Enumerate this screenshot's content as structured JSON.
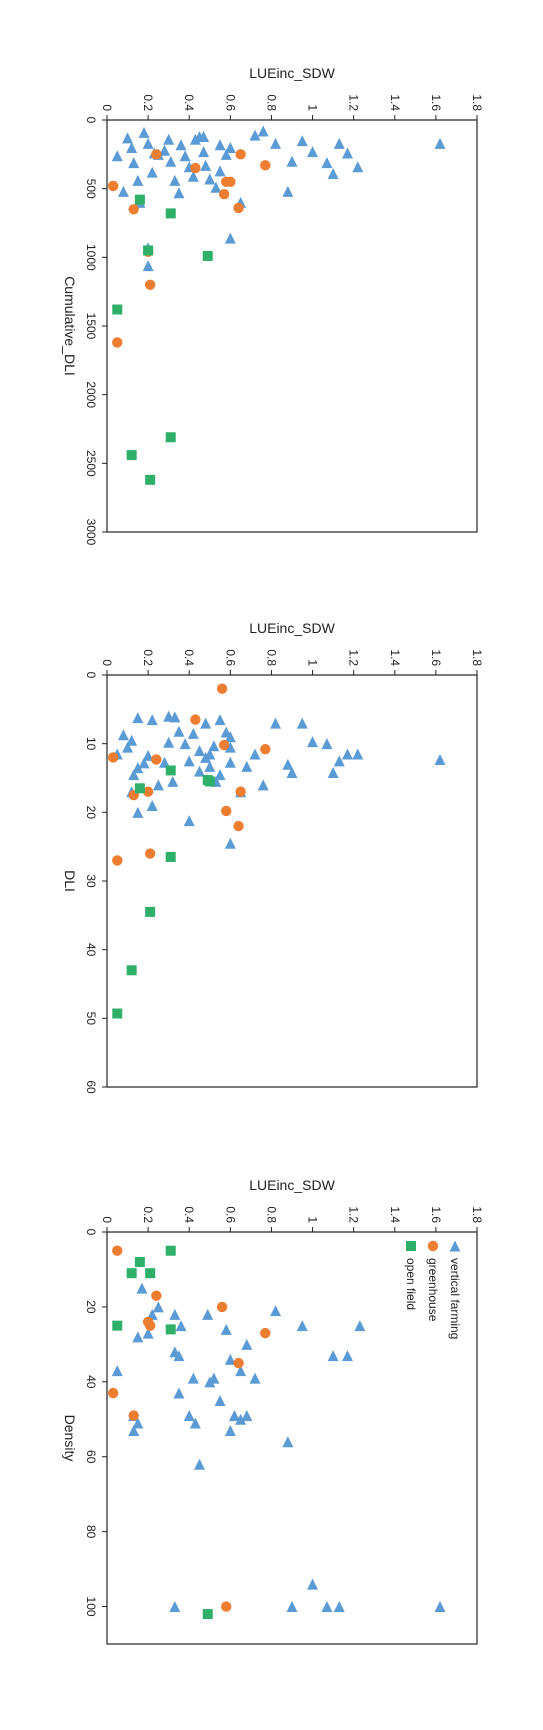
{
  "colors": {
    "vertical_farming": "#5b9bd5",
    "greenhouse": "#ed7d31",
    "open_field": "#2eb069",
    "axis": "#222222"
  },
  "chart_data": [
    {
      "type": "scatter",
      "xlabel": "Density",
      "ylabel": "LUEinc_SDW",
      "xlim": [
        0,
        110
      ],
      "ylim": [
        0,
        1.8
      ],
      "x_ticks": [
        "0",
        "20",
        "40",
        "60",
        "80",
        "100"
      ],
      "y_ticks": [
        "0",
        "0.2",
        "0.4",
        "0.6",
        "0.8",
        "1",
        "1.2",
        "1.4",
        "1.6",
        "1.8"
      ],
      "grid": false,
      "legend": "top-left",
      "series": [
        {
          "name": "vertical farming",
          "marker": "triangle",
          "color": "#5b9bd5",
          "points": [
            [
              100,
              1.62
            ],
            [
              100,
              1.13
            ],
            [
              100,
              1.07
            ],
            [
              100,
              0.9
            ],
            [
              100,
              0.33
            ],
            [
              94,
              1.0
            ],
            [
              56,
              0.88
            ],
            [
              62,
              0.45
            ],
            [
              53,
              0.6
            ],
            [
              53,
              0.13
            ],
            [
              51,
              0.43
            ],
            [
              51,
              0.15
            ],
            [
              50,
              0.65
            ],
            [
              49,
              0.62
            ],
            [
              49,
              0.68
            ],
            [
              49,
              0.4
            ],
            [
              49,
              0.13
            ],
            [
              45,
              0.55
            ],
            [
              43,
              0.35
            ],
            [
              40,
              0.5
            ],
            [
              39,
              0.52
            ],
            [
              39,
              0.72
            ],
            [
              39,
              0.42
            ],
            [
              37,
              0.65
            ],
            [
              37,
              0.05
            ],
            [
              34,
              0.6
            ],
            [
              33,
              1.17
            ],
            [
              33,
              1.1
            ],
            [
              33,
              0.35
            ],
            [
              32,
              0.33
            ],
            [
              30,
              0.68
            ],
            [
              28,
              0.15
            ],
            [
              27,
              0.2
            ],
            [
              26,
              0.58
            ],
            [
              25,
              1.23
            ],
            [
              25,
              0.95
            ],
            [
              25,
              0.36
            ],
            [
              22,
              0.49
            ],
            [
              22,
              0.33
            ],
            [
              22,
              0.22
            ],
            [
              21,
              0.82
            ],
            [
              20,
              0.25
            ],
            [
              15,
              0.17
            ]
          ]
        },
        {
          "name": "greenhouse",
          "marker": "circle",
          "color": "#ed7d31",
          "points": [
            [
              100,
              0.58
            ],
            [
              49,
              0.13
            ],
            [
              43,
              0.03
            ],
            [
              35,
              0.64
            ],
            [
              27,
              0.77
            ],
            [
              25,
              0.21
            ],
            [
              24,
              0.2
            ],
            [
              20,
              0.56
            ],
            [
              17,
              0.24
            ],
            [
              5,
              0.05
            ]
          ]
        },
        {
          "name": "open field",
          "marker": "square",
          "color": "#2eb069",
          "points": [
            [
              102,
              0.49
            ],
            [
              26,
              0.31
            ],
            [
              25,
              0.05
            ],
            [
              11,
              0.21
            ],
            [
              11,
              0.12
            ],
            [
              8,
              0.16
            ],
            [
              5,
              0.31
            ]
          ]
        }
      ]
    },
    {
      "type": "scatter",
      "xlabel": "DLI",
      "ylabel": "LUEinc_SDW",
      "xlim": [
        0,
        60
      ],
      "ylim": [
        0,
        1.8
      ],
      "x_ticks": [
        "0",
        "10",
        "20",
        "30",
        "40",
        "50",
        "60"
      ],
      "y_ticks": [
        "0",
        "0.2",
        "0.4",
        "0.6",
        "0.8",
        "1",
        "1.2",
        "1.4",
        "1.6",
        "1.8"
      ],
      "grid": false,
      "legend": "none",
      "series": [
        {
          "name": "vertical farming",
          "marker": "triangle",
          "color": "#5b9bd5",
          "points": [
            [
              12.3,
              1.62
            ],
            [
              11.5,
              1.22
            ],
            [
              11.5,
              1.17
            ],
            [
              12.5,
              1.13
            ],
            [
              10,
              1.07
            ],
            [
              14.2,
              1.1
            ],
            [
              9.7,
              1.0
            ],
            [
              14.2,
              0.9
            ],
            [
              13,
              0.88
            ],
            [
              7,
              0.95
            ],
            [
              7,
              0.82
            ],
            [
              16,
              0.76
            ],
            [
              11.5,
              0.72
            ],
            [
              13.3,
              0.68
            ],
            [
              17,
              0.65
            ],
            [
              24.5,
              0.6
            ],
            [
              12.7,
              0.6
            ],
            [
              10.5,
              0.6
            ],
            [
              8.3,
              0.58
            ],
            [
              9,
              0.6
            ],
            [
              14.5,
              0.55
            ],
            [
              10.3,
              0.52
            ],
            [
              11.5,
              0.5
            ],
            [
              13.3,
              0.5
            ],
            [
              15.5,
              0.53
            ],
            [
              14,
              0.45
            ],
            [
              11,
              0.45
            ],
            [
              12.5,
              0.4
            ],
            [
              10,
              0.38
            ],
            [
              8.5,
              0.42
            ],
            [
              6.5,
              0.55
            ],
            [
              6.1,
              0.33
            ],
            [
              21.2,
              0.4
            ],
            [
              15.5,
              0.32
            ],
            [
              12.7,
              0.28
            ],
            [
              9.8,
              0.3
            ],
            [
              8.2,
              0.35
            ],
            [
              6,
              0.3
            ],
            [
              19,
              0.22
            ],
            [
              20,
              0.15
            ],
            [
              17,
              0.12
            ],
            [
              14.5,
              0.13
            ],
            [
              12.8,
              0.18
            ],
            [
              11.7,
              0.2
            ],
            [
              10.5,
              0.1
            ],
            [
              9.5,
              0.12
            ],
            [
              8.7,
              0.08
            ],
            [
              6.5,
              0.22
            ],
            [
              6.2,
              0.15
            ],
            [
              11.5,
              0.05
            ],
            [
              12,
              0.48
            ],
            [
              7,
              0.48
            ],
            [
              16,
              0.25
            ],
            [
              13.5,
              0.15
            ]
          ]
        },
        {
          "name": "greenhouse",
          "marker": "circle",
          "color": "#ed7d31",
          "points": [
            [
              10.8,
              0.77
            ],
            [
              22,
              0.64
            ],
            [
              17,
              0.65
            ],
            [
              19.8,
              0.58
            ],
            [
              10.2,
              0.57
            ],
            [
              2,
              0.56
            ],
            [
              6.5,
              0.43
            ],
            [
              12.3,
              0.24
            ],
            [
              17,
              0.2
            ],
            [
              26,
              0.21
            ],
            [
              17.5,
              0.13
            ],
            [
              27,
              0.05
            ],
            [
              12,
              0.03
            ]
          ]
        },
        {
          "name": "open field",
          "marker": "square",
          "color": "#2eb069",
          "points": [
            [
              15.5,
              0.5
            ],
            [
              15.3,
              0.49
            ],
            [
              13.9,
              0.31
            ],
            [
              26.5,
              0.31
            ],
            [
              34.5,
              0.21
            ],
            [
              16.5,
              0.16
            ],
            [
              43,
              0.12
            ],
            [
              49.3,
              0.05
            ]
          ]
        }
      ]
    },
    {
      "type": "scatter",
      "xlabel": "Cumulative_DLI",
      "ylabel": "LUEinc_SDW",
      "xlim": [
        0,
        3000
      ],
      "ylim": [
        0,
        1.8
      ],
      "x_ticks": [
        "0",
        "500",
        "1000",
        "1500",
        "2000",
        "2500",
        "3000"
      ],
      "y_ticks": [
        "0",
        "0.2",
        "0.4",
        "0.6",
        "0.8",
        "1",
        "1.2",
        "1.4",
        "1.6",
        "1.8"
      ],
      "grid": false,
      "legend": "none",
      "series": [
        {
          "name": "vertical farming",
          "marker": "triangle",
          "color": "#5b9bd5",
          "points": [
            [
              170,
              1.62
            ],
            [
              340,
              1.22
            ],
            [
              240,
              1.17
            ],
            [
              170,
              1.13
            ],
            [
              390,
              1.1
            ],
            [
              310,
              1.07
            ],
            [
              230,
              1.0
            ],
            [
              150,
              0.95
            ],
            [
              300,
              0.9
            ],
            [
              520,
              0.88
            ],
            [
              170,
              0.82
            ],
            [
              80,
              0.76
            ],
            [
              110,
              0.72
            ],
            [
              600,
              0.65
            ],
            [
              860,
              0.6
            ],
            [
              200,
              0.6
            ],
            [
              250,
              0.58
            ],
            [
              180,
              0.55
            ],
            [
              490,
              0.53
            ],
            [
              430,
              0.5
            ],
            [
              330,
              0.48
            ],
            [
              230,
              0.47
            ],
            [
              120,
              0.45
            ],
            [
              140,
              0.43
            ],
            [
              410,
              0.42
            ],
            [
              340,
              0.4
            ],
            [
              260,
              0.38
            ],
            [
              180,
              0.36
            ],
            [
              530,
              0.35
            ],
            [
              440,
              0.33
            ],
            [
              300,
              0.31
            ],
            [
              140,
              0.3
            ],
            [
              220,
              0.28
            ],
            [
              1060,
              0.2
            ],
            [
              930,
              0.2
            ],
            [
              380,
              0.22
            ],
            [
              250,
              0.25
            ],
            [
              170,
              0.2
            ],
            [
              90,
              0.18
            ],
            [
              600,
              0.16
            ],
            [
              440,
              0.15
            ],
            [
              310,
              0.13
            ],
            [
              200,
              0.12
            ],
            [
              130,
              0.1
            ],
            [
              520,
              0.08
            ],
            [
              260,
              0.05
            ],
            [
              120,
              0.47
            ],
            [
              370,
              0.55
            ],
            [
              240,
              0.23
            ]
          ]
        },
        {
          "name": "greenhouse",
          "marker": "circle",
          "color": "#ed7d31",
          "points": [
            [
              330,
              0.77
            ],
            [
              640,
              0.64
            ],
            [
              250,
              0.65
            ],
            [
              450,
              0.6
            ],
            [
              540,
              0.57
            ],
            [
              450,
              0.58
            ],
            [
              350,
              0.43
            ],
            [
              250,
              0.24
            ],
            [
              960,
              0.2
            ],
            [
              1200,
              0.21
            ],
            [
              650,
              0.13
            ],
            [
              1620,
              0.05
            ],
            [
              480,
              0.03
            ]
          ]
        },
        {
          "name": "open field",
          "marker": "square",
          "color": "#2eb069",
          "points": [
            [
              2310,
              0.31
            ],
            [
              2620,
              0.21
            ],
            [
              2440,
              0.12
            ],
            [
              1380,
              0.05
            ],
            [
              990,
              0.49
            ],
            [
              680,
              0.31
            ],
            [
              950,
              0.2
            ],
            [
              580,
              0.16
            ]
          ]
        }
      ]
    }
  ]
}
